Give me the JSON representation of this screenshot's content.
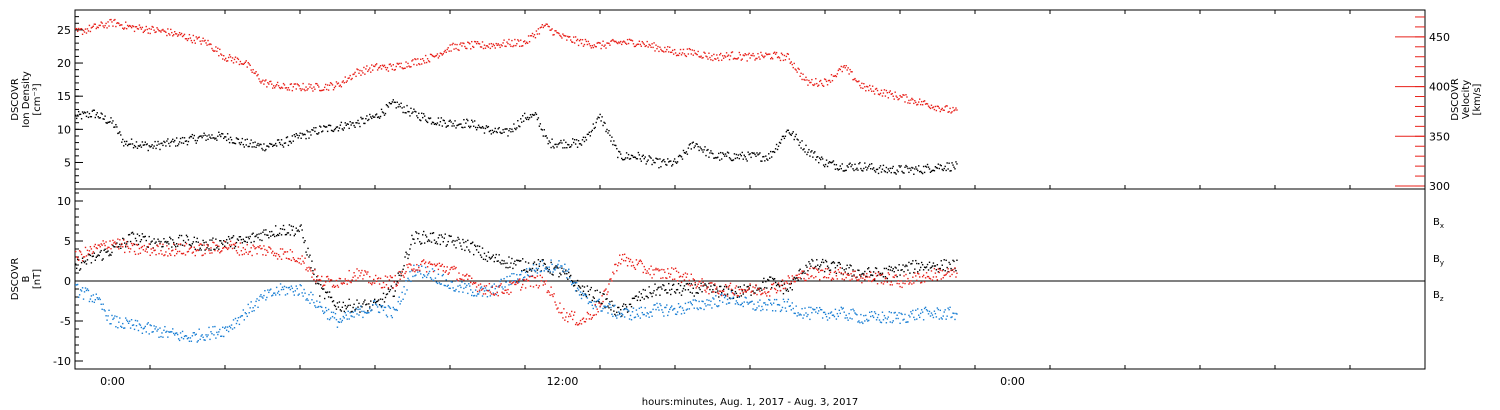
{
  "chart_data": [
    {
      "type": "scatter",
      "title": "",
      "x_range_hours": [
        -1,
        35
      ],
      "x_ticks": [
        {
          "hours": 0,
          "label": "0:00"
        },
        {
          "hours": 12,
          "label": "12:00"
        },
        {
          "hours": 24,
          "label": "0:00"
        }
      ],
      "xlabel": "hours:minutes, Aug.  1, 2017 - Aug.  3, 2017",
      "left_axis": {
        "label_lines": [
          "DSCOVR",
          "Ion Density",
          "[cm⁻³]"
        ],
        "ylim": [
          1,
          28
        ],
        "ticks": [
          5,
          10,
          15,
          20,
          25
        ],
        "color": "#000000"
      },
      "right_axis": {
        "label_lines": [
          "DSCOVR",
          "Velocity",
          "[km/s]"
        ],
        "ylim": [
          297,
          477
        ],
        "ticks": [
          300,
          350,
          400,
          450
        ],
        "color": "#e8201a"
      },
      "series": [
        {
          "name": "",
          "axis": "left",
          "color": "#000000",
          "x": [
            -1,
            -0.5,
            0,
            0.3,
            0.6,
            1,
            1.5,
            2,
            2.5,
            3,
            3.5,
            4,
            4.5,
            5,
            5.5,
            6,
            6.5,
            7,
            7.5,
            8,
            8.5,
            9,
            9.5,
            10,
            10.5,
            11,
            11.3,
            11.6,
            12,
            12.5,
            13,
            13.5,
            14,
            14.5,
            15,
            15.5,
            16,
            16.5,
            17,
            17.5,
            18,
            18.5,
            19,
            19.5,
            20,
            20.5,
            21,
            21.5,
            22,
            22.5
          ],
          "y": [
            12,
            12.5,
            11,
            8,
            8,
            7.5,
            8,
            8.5,
            9,
            9,
            8,
            7.5,
            8,
            9,
            10,
            10.5,
            11,
            12,
            14,
            12.5,
            11.5,
            11,
            11,
            10,
            9.5,
            12,
            12,
            8,
            8,
            8,
            12,
            6,
            6,
            5,
            5,
            8,
            6,
            6,
            6,
            6,
            10,
            7,
            5,
            4.5,
            4.5,
            4,
            4,
            4,
            4.5,
            4.5
          ]
        },
        {
          "name": "",
          "axis": "right",
          "color": "#e8201a",
          "x": [
            -1,
            -0.5,
            0,
            0.5,
            1,
            1.5,
            2,
            2.5,
            3,
            3.5,
            4,
            4.5,
            5,
            5.5,
            6,
            6.5,
            7,
            7.5,
            8,
            8.5,
            9,
            9.5,
            10,
            10.5,
            11,
            11.5,
            12,
            12.5,
            13,
            13.5,
            14,
            14.5,
            15,
            15.5,
            16,
            16.5,
            17,
            17.5,
            18,
            18.5,
            19,
            19.5,
            20,
            20.5,
            21,
            21.5,
            22,
            22.5
          ],
          "y": [
            455,
            460,
            465,
            460,
            458,
            455,
            450,
            445,
            430,
            425,
            405,
            400,
            400,
            400,
            402,
            415,
            420,
            420,
            425,
            430,
            440,
            442,
            442,
            444,
            445,
            462,
            450,
            445,
            442,
            445,
            445,
            440,
            435,
            435,
            430,
            432,
            430,
            432,
            430,
            405,
            405,
            420,
            400,
            395,
            390,
            385,
            380,
            375
          ]
        }
      ]
    },
    {
      "type": "scatter",
      "title": "",
      "x_range_hours": [
        -1,
        35
      ],
      "left_axis": {
        "label_lines": [
          "DSCOVR",
          "B",
          "[nT]"
        ],
        "ylim": [
          -11,
          11.5
        ],
        "ticks": [
          -10,
          -5,
          0,
          5,
          10
        ],
        "color": "#000000"
      },
      "zero_line": true,
      "series": [
        {
          "name": "B",
          "sub": "x",
          "color": "#000000",
          "x": [
            -1,
            -0.5,
            0,
            0.5,
            1,
            1.5,
            2,
            2.5,
            3,
            3.5,
            4,
            4.5,
            5,
            5.5,
            6,
            6.5,
            7,
            7.5,
            8,
            8.5,
            9,
            9.5,
            10,
            10.5,
            11,
            11.5,
            12,
            12.5,
            13,
            13.5,
            14,
            14.5,
            15,
            15.5,
            16,
            16.5,
            17,
            17.5,
            18,
            18.5,
            19,
            19.5,
            20,
            20.5,
            21,
            21.5,
            22,
            22.5
          ],
          "y": [
            2,
            3,
            4,
            5.5,
            5,
            5,
            5,
            4.5,
            5,
            5,
            6,
            6.5,
            6.5,
            -1,
            -3,
            -3,
            -3,
            -1,
            5.5,
            5.5,
            5,
            4.5,
            3,
            2.5,
            2,
            2,
            1,
            -1,
            -2,
            -4,
            -2,
            -1,
            -1,
            -1,
            -1,
            -1.5,
            -1,
            0,
            -1,
            2,
            2,
            1.5,
            1,
            1,
            1.5,
            2,
            2,
            2
          ]
        },
        {
          "name": "B",
          "sub": "y",
          "color": "#1a7fd4",
          "x": [
            -1,
            -0.5,
            0,
            0.5,
            1,
            1.5,
            2,
            2.5,
            3,
            3.5,
            4,
            4.5,
            5,
            5.5,
            6,
            6.5,
            7,
            7.5,
            8,
            8.5,
            9,
            9.5,
            10,
            10.5,
            11,
            11.5,
            12,
            12.5,
            13,
            13.5,
            14,
            14.5,
            15,
            15.5,
            16,
            16.5,
            17,
            17.5,
            18,
            18.5,
            19,
            19.5,
            20,
            20.5,
            21,
            21.5,
            22,
            22.5
          ],
          "y": [
            -1,
            -2,
            -5,
            -5.5,
            -6,
            -6.5,
            -7,
            -6.5,
            -6,
            -4,
            -2,
            -1,
            -1,
            -3,
            -5,
            -4,
            -3,
            -4,
            1.5,
            1,
            -0.5,
            -1,
            -1.5,
            0,
            1,
            2,
            2,
            -2,
            -3,
            -4,
            -4,
            -3.5,
            -3.5,
            -3,
            -2.5,
            -2,
            -3,
            -3,
            -3,
            -4,
            -4,
            -4,
            -4.5,
            -4.5,
            -4.5,
            -4,
            -4,
            -4
          ]
        },
        {
          "name": "B",
          "sub": "z",
          "color": "#e8201a",
          "x": [
            -1,
            -0.5,
            0,
            0.5,
            1,
            1.5,
            2,
            2.5,
            3,
            3.5,
            4,
            4.5,
            5,
            5.5,
            6,
            6.5,
            7,
            7.5,
            8,
            8.5,
            9,
            9.5,
            10,
            10.5,
            11,
            11.5,
            12,
            12.5,
            13,
            13.5,
            14,
            14.5,
            15,
            15.5,
            16,
            16.5,
            17,
            17.5,
            18,
            18.5,
            19,
            19.5,
            20,
            20.5,
            21,
            21.5,
            22,
            22.5
          ],
          "y": [
            3,
            4,
            5,
            4,
            4,
            4,
            4,
            4,
            4.5,
            4,
            4,
            3.5,
            3,
            0,
            0,
            1,
            0,
            0,
            2,
            2,
            1.5,
            0,
            -1,
            -1,
            0,
            0,
            -4,
            -5,
            -3,
            3,
            2,
            1,
            1,
            0,
            -1,
            -1,
            -1,
            -1,
            0,
            1,
            1,
            1,
            0.5,
            0.5,
            0,
            0.5,
            1,
            1
          ]
        }
      ]
    }
  ]
}
